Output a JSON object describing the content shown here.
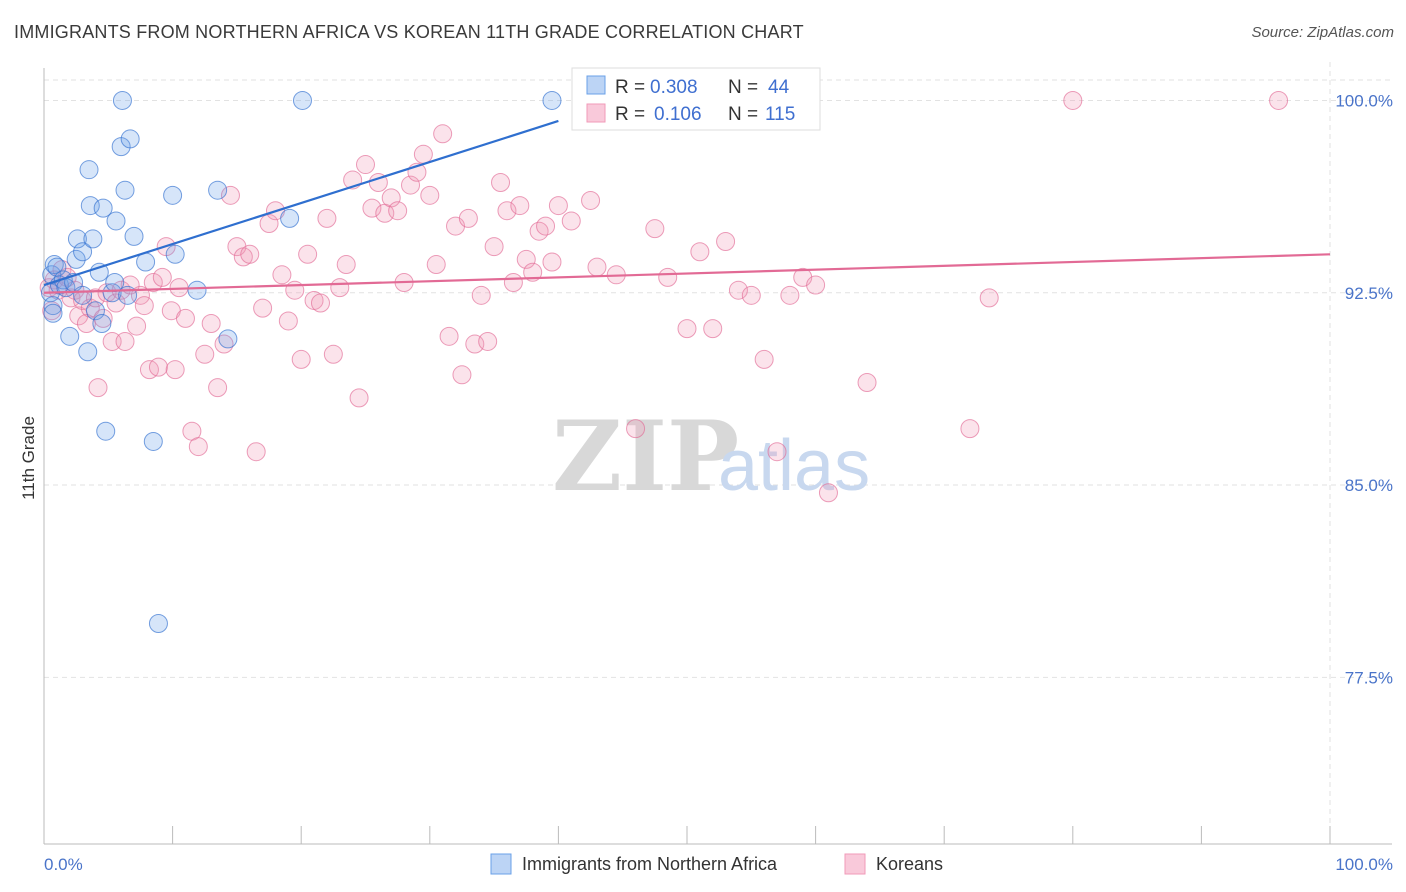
{
  "title": "IMMIGRANTS FROM NORTHERN AFRICA VS KOREAN 11TH GRADE CORRELATION CHART",
  "source": "Source: ZipAtlas.com",
  "watermark": {
    "zip": "ZIP",
    "atlas": "atlas"
  },
  "colors": {
    "blue": "#6aa0e8",
    "blue_line": "#2f6fcf",
    "pink": "#f19ab8",
    "pink_line": "#e26a95",
    "axis_text": "#4a74c9"
  },
  "chart_data": {
    "type": "scatter",
    "title": "IMMIGRANTS FROM NORTHERN AFRICA VS KOREAN 11TH GRADE CORRELATION CHART",
    "xlabel": "",
    "ylabel": "11th Grade",
    "xlim": [
      0,
      100
    ],
    "ylim": [
      71.0,
      101.5
    ],
    "x_tick_labels": [
      "0.0%",
      "100.0%"
    ],
    "y_ticks": [
      77.5,
      85.0,
      92.5,
      100.0
    ],
    "y_tick_labels": [
      "77.5%",
      "85.0%",
      "92.5%",
      "100.0%"
    ],
    "grid": true,
    "legend_top": [
      {
        "r_label": "R = ",
        "r": "0.308",
        "n_label": "N = ",
        "n": "44",
        "series": "blue"
      },
      {
        "r_label": "R = ",
        "r": "0.106",
        "n_label": "N = ",
        "n": "115",
        "series": "pink"
      }
    ],
    "series": [
      {
        "name": "Immigrants from Northern Africa",
        "color": "#6aa0e8",
        "trend": {
          "x": [
            0,
            40
          ],
          "y": [
            92.8,
            99.2
          ]
        },
        "points": [
          [
            0.5,
            92.5
          ],
          [
            0.6,
            93.2
          ],
          [
            0.7,
            92.0
          ],
          [
            0.8,
            93.6
          ],
          [
            1.0,
            93.5
          ],
          [
            1.2,
            92.8
          ],
          [
            1.5,
            93.0
          ],
          [
            1.7,
            92.7
          ],
          [
            2.0,
            90.8
          ],
          [
            2.3,
            92.9
          ],
          [
            2.5,
            93.8
          ],
          [
            2.6,
            94.6
          ],
          [
            3.0,
            92.4
          ],
          [
            3.0,
            94.1
          ],
          [
            3.4,
            90.2
          ],
          [
            3.5,
            97.3
          ],
          [
            3.6,
            95.9
          ],
          [
            3.8,
            94.6
          ],
          [
            4.0,
            91.8
          ],
          [
            4.3,
            93.3
          ],
          [
            4.5,
            91.3
          ],
          [
            4.6,
            95.8
          ],
          [
            4.8,
            87.1
          ],
          [
            5.3,
            92.5
          ],
          [
            5.5,
            92.9
          ],
          [
            5.6,
            95.3
          ],
          [
            6.0,
            98.2
          ],
          [
            6.1,
            100.0
          ],
          [
            6.3,
            96.5
          ],
          [
            6.5,
            92.4
          ],
          [
            6.7,
            98.5
          ],
          [
            7.0,
            94.7
          ],
          [
            7.9,
            93.7
          ],
          [
            8.5,
            86.7
          ],
          [
            8.9,
            79.6
          ],
          [
            10.0,
            96.3
          ],
          [
            10.2,
            94.0
          ],
          [
            11.9,
            92.6
          ],
          [
            13.5,
            96.5
          ],
          [
            14.3,
            90.7
          ],
          [
            19.1,
            95.4
          ],
          [
            20.1,
            100.0
          ],
          [
            39.5,
            100.0
          ],
          [
            0.7,
            91.7
          ]
        ]
      },
      {
        "name": "Koreans",
        "color": "#f19ab8",
        "trend": {
          "x": [
            0,
            100
          ],
          "y": [
            92.5,
            94.0
          ]
        },
        "points": [
          [
            0.4,
            92.7
          ],
          [
            0.6,
            91.8
          ],
          [
            0.8,
            93.0
          ],
          [
            1.1,
            92.6
          ],
          [
            1.4,
            93.4
          ],
          [
            1.8,
            93.1
          ],
          [
            2.1,
            92.3
          ],
          [
            2.4,
            92.6
          ],
          [
            2.7,
            91.6
          ],
          [
            3.0,
            92.2
          ],
          [
            3.3,
            91.3
          ],
          [
            3.6,
            91.9
          ],
          [
            4.0,
            92.3
          ],
          [
            4.2,
            88.8
          ],
          [
            4.6,
            91.5
          ],
          [
            4.9,
            92.5
          ],
          [
            5.3,
            90.6
          ],
          [
            5.6,
            92.1
          ],
          [
            6.0,
            92.6
          ],
          [
            6.3,
            90.6
          ],
          [
            6.7,
            92.8
          ],
          [
            7.2,
            91.2
          ],
          [
            7.5,
            92.4
          ],
          [
            7.8,
            92.0
          ],
          [
            8.2,
            89.5
          ],
          [
            8.5,
            92.9
          ],
          [
            8.9,
            89.6
          ],
          [
            9.2,
            93.1
          ],
          [
            9.5,
            94.3
          ],
          [
            9.9,
            91.8
          ],
          [
            10.2,
            89.5
          ],
          [
            10.5,
            92.7
          ],
          [
            11.0,
            91.5
          ],
          [
            11.5,
            87.1
          ],
          [
            12.0,
            86.5
          ],
          [
            12.5,
            90.1
          ],
          [
            13.0,
            91.3
          ],
          [
            13.5,
            88.8
          ],
          [
            14.0,
            90.5
          ],
          [
            14.5,
            96.3
          ],
          [
            15.0,
            94.3
          ],
          [
            15.5,
            93.9
          ],
          [
            16.0,
            94.0
          ],
          [
            16.5,
            86.3
          ],
          [
            17.0,
            91.9
          ],
          [
            17.5,
            95.2
          ],
          [
            18.0,
            95.7
          ],
          [
            18.5,
            93.2
          ],
          [
            19.0,
            91.4
          ],
          [
            19.5,
            92.6
          ],
          [
            20.0,
            89.9
          ],
          [
            20.5,
            94.0
          ],
          [
            21.0,
            92.2
          ],
          [
            21.5,
            92.1
          ],
          [
            22.0,
            95.4
          ],
          [
            22.5,
            90.1
          ],
          [
            23.0,
            92.7
          ],
          [
            23.5,
            93.6
          ],
          [
            24.0,
            96.9
          ],
          [
            24.5,
            88.4
          ],
          [
            25.0,
            97.5
          ],
          [
            25.5,
            95.8
          ],
          [
            26.0,
            96.8
          ],
          [
            26.5,
            95.6
          ],
          [
            27.0,
            96.2
          ],
          [
            27.5,
            95.7
          ],
          [
            28.0,
            92.9
          ],
          [
            28.5,
            96.7
          ],
          [
            29.0,
            97.2
          ],
          [
            29.5,
            97.9
          ],
          [
            30.0,
            96.3
          ],
          [
            30.5,
            93.6
          ],
          [
            31.0,
            98.7
          ],
          [
            31.5,
            90.8
          ],
          [
            32.0,
            95.1
          ],
          [
            32.5,
            89.3
          ],
          [
            33.0,
            95.4
          ],
          [
            33.5,
            90.5
          ],
          [
            34.0,
            92.4
          ],
          [
            34.5,
            90.6
          ],
          [
            35.0,
            94.3
          ],
          [
            35.5,
            96.8
          ],
          [
            36.0,
            95.7
          ],
          [
            36.5,
            92.9
          ],
          [
            37.0,
            95.9
          ],
          [
            37.5,
            93.8
          ],
          [
            38.0,
            93.3
          ],
          [
            38.5,
            94.9
          ],
          [
            39.0,
            95.1
          ],
          [
            39.5,
            93.7
          ],
          [
            40.0,
            95.9
          ],
          [
            41.0,
            95.3
          ],
          [
            42.5,
            96.1
          ],
          [
            43.0,
            93.5
          ],
          [
            44.5,
            93.2
          ],
          [
            46.0,
            87.2
          ],
          [
            47.5,
            95.0
          ],
          [
            48.5,
            93.1
          ],
          [
            50.0,
            91.1
          ],
          [
            51.0,
            94.1
          ],
          [
            52.0,
            91.1
          ],
          [
            53.0,
            94.5
          ],
          [
            54.0,
            92.6
          ],
          [
            55.0,
            92.4
          ],
          [
            56.0,
            89.9
          ],
          [
            57.0,
            86.3
          ],
          [
            58.0,
            92.4
          ],
          [
            59.0,
            93.1
          ],
          [
            60.0,
            92.8
          ],
          [
            61.0,
            84.7
          ],
          [
            64.0,
            89.0
          ],
          [
            72.0,
            87.2
          ],
          [
            73.5,
            92.3
          ],
          [
            80.0,
            100.0
          ],
          [
            96.0,
            100.0
          ]
        ]
      }
    ]
  }
}
